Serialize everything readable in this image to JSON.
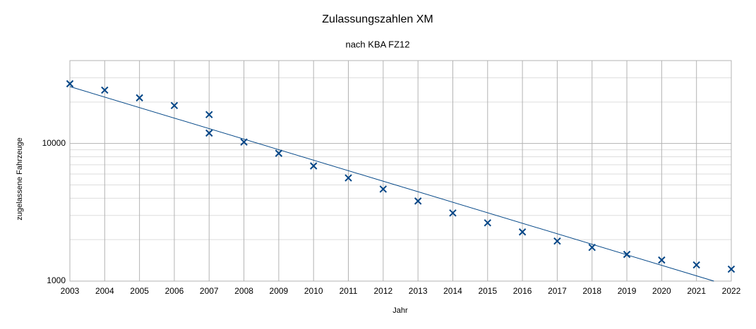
{
  "chart_data": {
    "type": "scatter",
    "title": "Zulassungszahlen XM",
    "subtitle": "nach KBA FZ12",
    "x_label": "Jahr",
    "y_label": "zugelassene Fahrzeuge",
    "x": [
      2003,
      2004,
      2005,
      2006,
      2007,
      2007,
      2008,
      2009,
      2010,
      2011,
      2012,
      2013,
      2014,
      2015,
      2016,
      2017,
      2018,
      2019,
      2020,
      2021,
      2022
    ],
    "values": [
      27150,
      24400,
      21450,
      18850,
      16200,
      11900,
      10240,
      8480,
      6870,
      5620,
      4660,
      3815,
      3125,
      2650,
      2275,
      1953,
      1757,
      1563,
      1422,
      1310,
      1221
    ],
    "color": "#004586",
    "trendline": {
      "x": [
        2003,
        2021.5
      ],
      "values": [
        25900,
        1000
      ],
      "color": "#004586"
    },
    "xlim": [
      2003,
      2022
    ],
    "xticks": [
      2003,
      2004,
      2005,
      2006,
      2007,
      2008,
      2009,
      2010,
      2011,
      2012,
      2013,
      2014,
      2015,
      2016,
      2017,
      2018,
      2019,
      2020,
      2021,
      2022
    ],
    "ylim": [
      1000,
      40000
    ],
    "yticks": [
      1000,
      10000
    ],
    "yminorticks": [
      2000,
      3000,
      4000,
      5000,
      6000,
      7000,
      8000,
      9000,
      20000,
      30000,
      40000
    ],
    "yscale": "log",
    "grid": true
  }
}
